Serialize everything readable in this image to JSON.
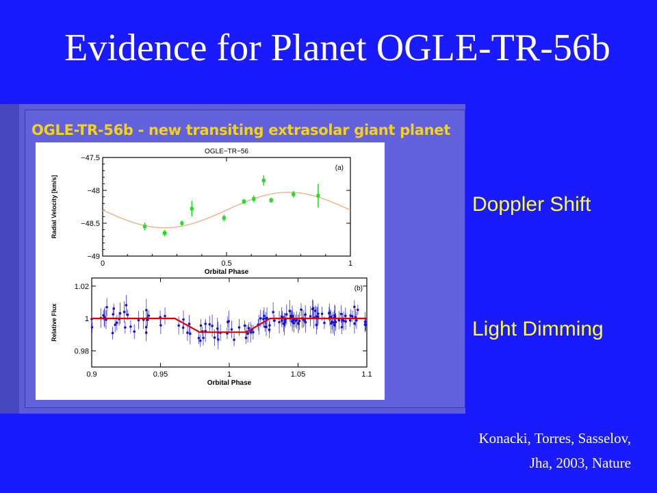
{
  "slide": {
    "title": "Evidence for Planet OGLE-TR-56b",
    "figure_heading": "OGLE-TR-56b - new transiting extrasolar giant planet",
    "label_top": "Doppler Shift",
    "label_bottom": "Light Dimming",
    "citation_line1": "Konacki, Torres, Sasselov,",
    "citation_line2": "Jha, 2003, Nature"
  },
  "colors": {
    "background": "#1a1aff",
    "label_color": "#ffff33",
    "heading_color": "#f5d21a",
    "rv_points": "#22dd22",
    "rv_model": "#f0b080",
    "flux_points": "#1010d8",
    "flux_model": "#e00000"
  },
  "chart_data": [
    {
      "type": "scatter",
      "title": "OGLE−TR−56",
      "panel_tag": "(a)",
      "xlabel": "Orbital Phase",
      "ylabel": "Radial Velocity [km/s]",
      "xlim": [
        0,
        1
      ],
      "ylim": [
        -49,
        -47.5
      ],
      "xticks": [
        "0",
        "0.5",
        "1"
      ],
      "yticks": [
        "−47.5",
        "−48",
        "−48.5",
        "−49"
      ],
      "xtick_values": [
        0,
        0.5,
        1
      ],
      "ytick_values": [
        -47.5,
        -48,
        -48.5,
        -49
      ],
      "points": [
        {
          "x": 0.17,
          "y": -48.55,
          "err": 0.06
        },
        {
          "x": 0.25,
          "y": -48.65,
          "err": 0.05
        },
        {
          "x": 0.32,
          "y": -48.5,
          "err": 0.04
        },
        {
          "x": 0.36,
          "y": -48.28,
          "err": 0.12
        },
        {
          "x": 0.49,
          "y": -48.42,
          "err": 0.05
        },
        {
          "x": 0.57,
          "y": -48.17,
          "err": 0.04
        },
        {
          "x": 0.61,
          "y": -48.13,
          "err": 0.05
        },
        {
          "x": 0.65,
          "y": -47.85,
          "err": 0.08
        },
        {
          "x": 0.68,
          "y": -48.15,
          "err": 0.04
        },
        {
          "x": 0.77,
          "y": -48.06,
          "err": 0.05
        },
        {
          "x": 0.87,
          "y": -48.08,
          "err": 0.18
        }
      ],
      "model": {
        "offset": -48.3,
        "amplitude": 0.27,
        "phase_of_min": 0.25
      }
    },
    {
      "type": "scatter",
      "title": "",
      "panel_tag": "(b)",
      "xlabel": "Orbital Phase",
      "ylabel": "Relative Flux",
      "xlim": [
        0.9,
        1.1
      ],
      "ylim": [
        0.97,
        1.025
      ],
      "xticks": [
        "0.9",
        "0.95",
        "1",
        "1.05",
        "1.1"
      ],
      "yticks": [
        "1.02",
        "1",
        "0.98"
      ],
      "xtick_values": [
        0.9,
        0.95,
        1.0,
        1.05,
        1.1
      ],
      "ytick_values": [
        1.02,
        1.0,
        0.98
      ],
      "points_note": "",
      "model": {
        "baseline": 1.0,
        "depth": 0.0085,
        "ingress_start": 0.9605,
        "ingress_end": 0.9785,
        "egress_start": 1.0125,
        "egress_end": 1.0295
      },
      "scatter_sigma": 0.0045,
      "n_points": 150
    }
  ]
}
